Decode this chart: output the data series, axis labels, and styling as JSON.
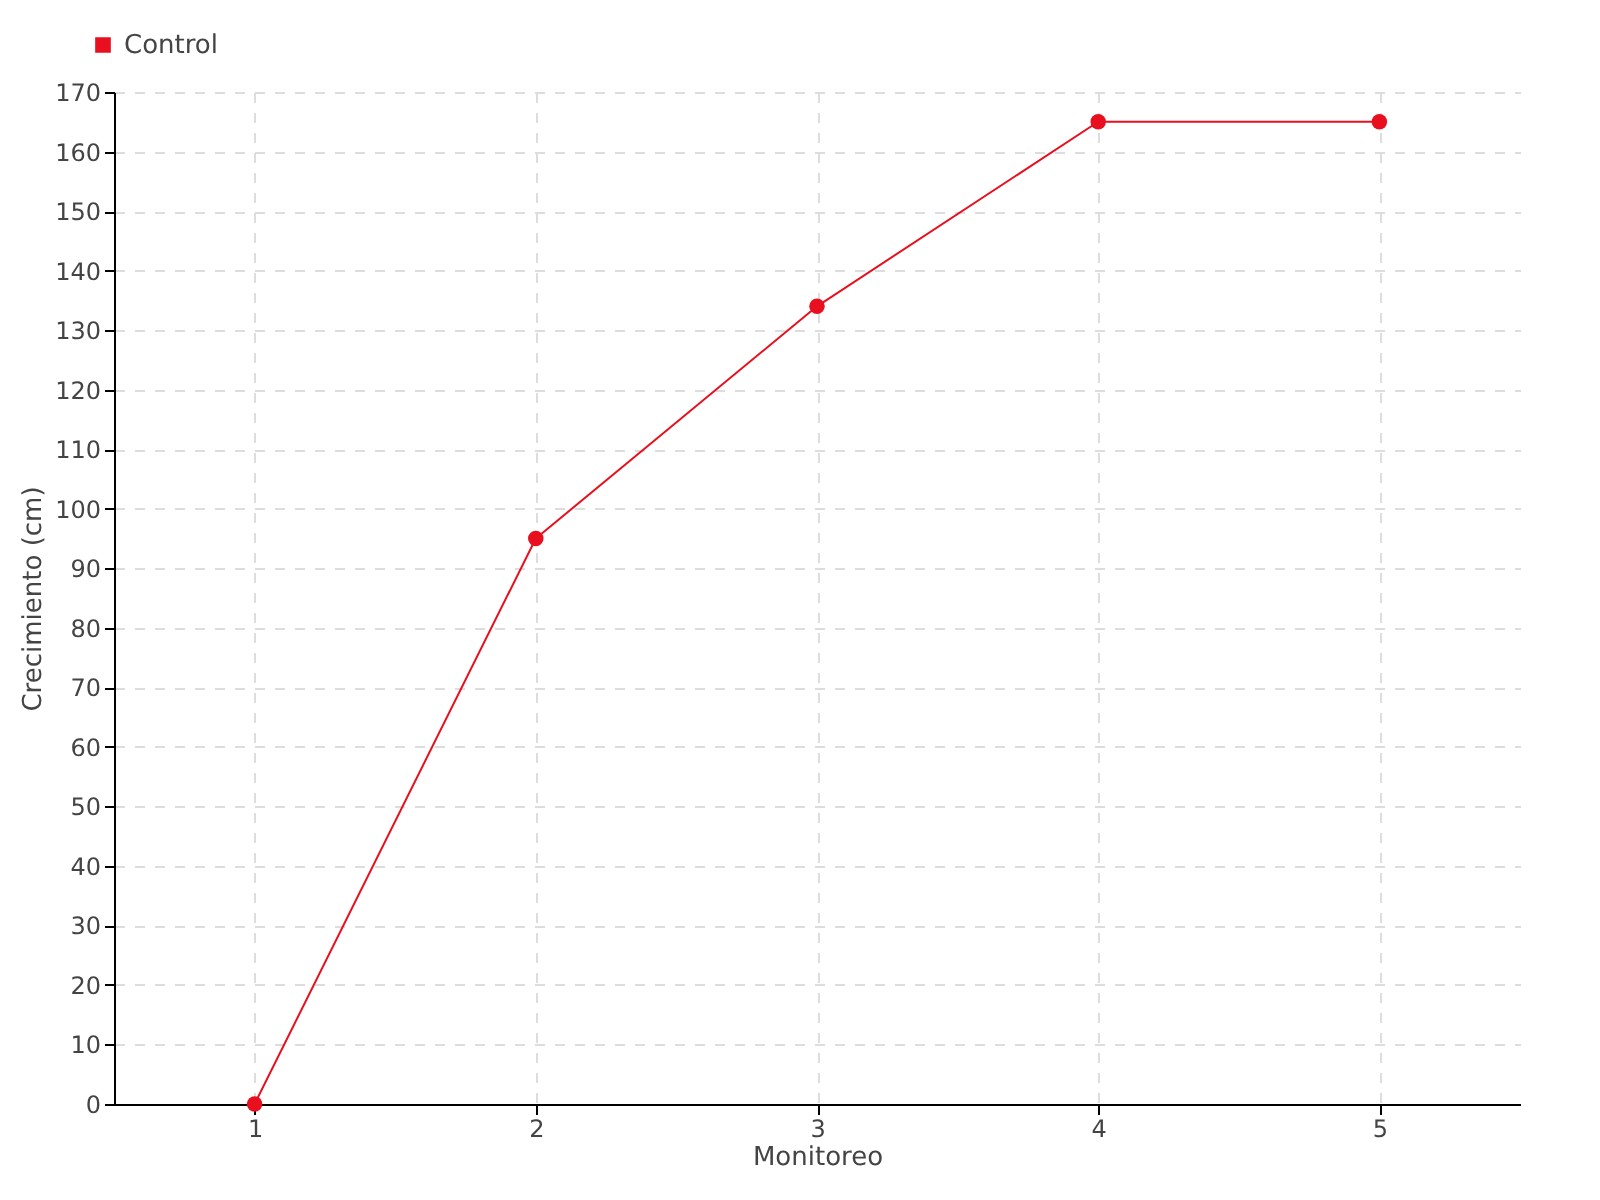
{
  "chart_data": {
    "type": "line",
    "xlabel": "Monitoreo",
    "ylabel": "Crecimiento (cm)",
    "x": [
      1,
      2,
      3,
      4,
      5
    ],
    "xlim": [
      0.5,
      5.5
    ],
    "xticks": [
      1,
      2,
      3,
      4,
      5
    ],
    "ylim": [
      0,
      170
    ],
    "yticks": [
      0,
      10,
      20,
      30,
      40,
      50,
      60,
      70,
      80,
      90,
      100,
      110,
      120,
      130,
      140,
      150,
      160,
      170
    ],
    "series": [
      {
        "name": "Control",
        "color": "#e8101e",
        "values": [
          0,
          95,
          134,
          165,
          165
        ]
      }
    ],
    "grid": true,
    "legend": "top left",
    "marker": "circle",
    "line_style": "solid"
  }
}
